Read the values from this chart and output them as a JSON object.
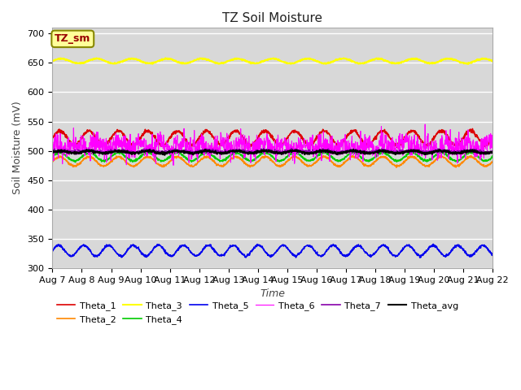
{
  "title": "TZ Soil Moisture",
  "ylabel": "Soil Moisture (mV)",
  "xlabel": "Time",
  "ylim": [
    300,
    710
  ],
  "yticks": [
    300,
    350,
    400,
    450,
    500,
    550,
    600,
    650,
    700
  ],
  "background_color": "#d8d8d8",
  "fig_background": "#ffffff",
  "series_order": [
    "Theta_1",
    "Theta_2",
    "Theta_3",
    "Theta_4",
    "Theta_5",
    "Theta_6",
    "Theta_7",
    "Theta_avg"
  ],
  "series": {
    "Theta_1": {
      "color": "#dd0000",
      "base": 522,
      "amp": 12,
      "period": 1.0,
      "noise": 1.5,
      "lw": 1.2
    },
    "Theta_2": {
      "color": "#ff8800",
      "base": 482,
      "amp": 8,
      "period": 1.0,
      "noise": 0.8,
      "lw": 1.2
    },
    "Theta_3": {
      "color": "#ffff00",
      "base": 653,
      "amp": 4,
      "period": 1.2,
      "noise": 0.5,
      "lw": 1.5
    },
    "Theta_4": {
      "color": "#00cc00",
      "base": 490,
      "amp": 7,
      "period": 1.0,
      "noise": 0.8,
      "lw": 1.2
    },
    "Theta_5": {
      "color": "#0000ee",
      "base": 330,
      "amp": 9,
      "period": 0.85,
      "noise": 1.0,
      "lw": 1.2
    },
    "Theta_6": {
      "color": "#ff00ff",
      "base": 508,
      "amp": 5,
      "period": 0.7,
      "noise": 10,
      "lw": 0.8
    },
    "Theta_7": {
      "color": "#8800aa",
      "base": 499,
      "amp": 1.5,
      "period": 1.0,
      "noise": 1.5,
      "lw": 1.2
    },
    "Theta_avg": {
      "color": "#000000",
      "base": 498,
      "amp": 2,
      "period": 1.0,
      "noise": 1.0,
      "lw": 1.5
    }
  },
  "annotation_text": "TZ_sm",
  "annotation_color": "#990000",
  "annotation_bg": "#ffff99",
  "annotation_edge": "#888800",
  "legend_order": [
    "Theta_1",
    "Theta_2",
    "Theta_3",
    "Theta_4",
    "Theta_5",
    "Theta_6",
    "Theta_7",
    "Theta_avg"
  ],
  "num_points": 1500,
  "title_fontsize": 11,
  "axis_label_fontsize": 9,
  "tick_fontsize": 8
}
